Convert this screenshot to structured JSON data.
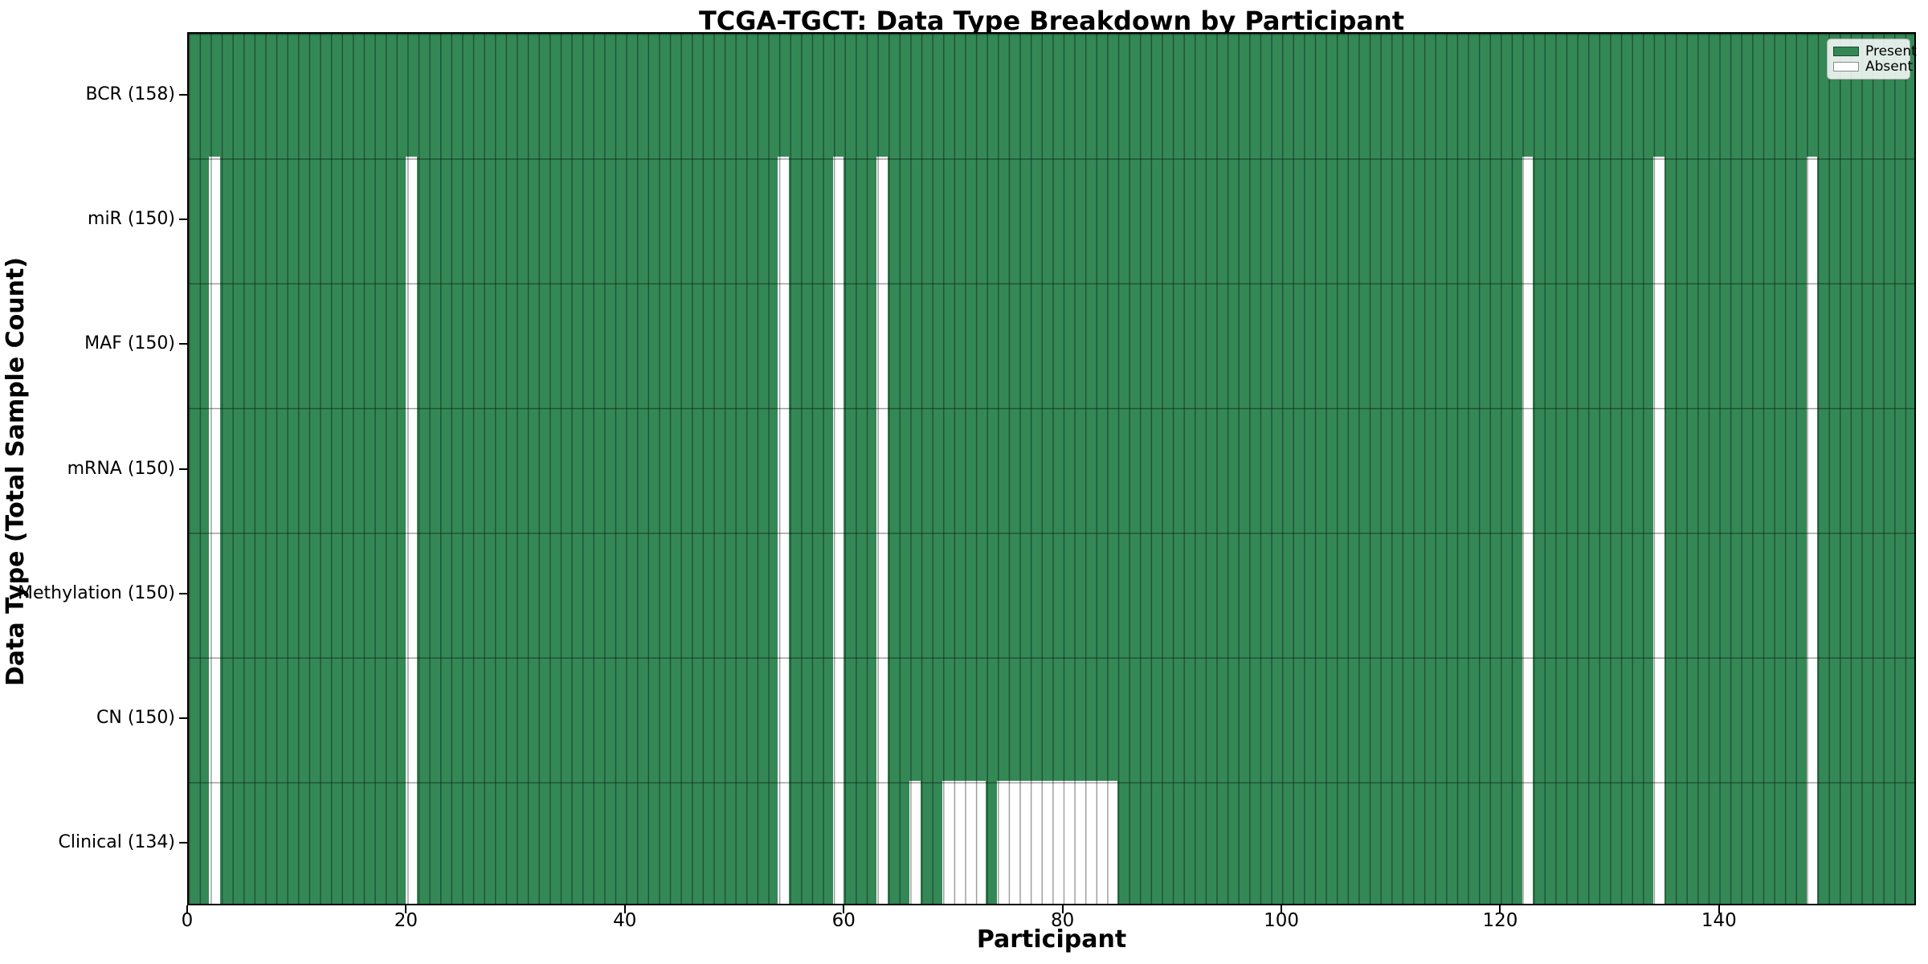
{
  "chart_data": {
    "type": "heatmap",
    "title": "TCGA-TGCT: Data Type Breakdown by Participant",
    "xlabel": "Participant",
    "ylabel": "Data Type (Total Sample Count)",
    "n_participants": 158,
    "n_rows": 7,
    "x_ticks": [
      0,
      20,
      40,
      60,
      80,
      100,
      120,
      140
    ],
    "rows": [
      {
        "label": "BCR (158)",
        "data_type": "BCR",
        "present_count": 158,
        "absent_participants": []
      },
      {
        "label": "miR (150)",
        "data_type": "miR",
        "present_count": 150,
        "absent_participants": [
          2,
          20,
          54,
          59,
          63,
          122,
          134,
          148
        ]
      },
      {
        "label": "MAF (150)",
        "data_type": "MAF",
        "present_count": 150,
        "absent_participants": [
          2,
          20,
          54,
          59,
          63,
          122,
          134,
          148
        ]
      },
      {
        "label": "mRNA (150)",
        "data_type": "mRNA",
        "present_count": 150,
        "absent_participants": [
          2,
          20,
          54,
          59,
          63,
          122,
          134,
          148
        ]
      },
      {
        "label": "Methylation (150)",
        "data_type": "Methylation",
        "present_count": 150,
        "absent_participants": [
          2,
          20,
          54,
          59,
          63,
          122,
          134,
          148
        ]
      },
      {
        "label": "CN (150)",
        "data_type": "CN",
        "present_count": 150,
        "absent_participants": [
          2,
          20,
          54,
          59,
          63,
          122,
          134,
          148
        ]
      },
      {
        "label": "Clinical (134)",
        "data_type": "Clinical",
        "present_count": 134,
        "absent_participants": [
          2,
          20,
          54,
          59,
          63,
          66,
          69,
          70,
          71,
          72,
          74,
          75,
          76,
          77,
          78,
          79,
          80,
          81,
          82,
          83,
          84,
          122,
          134,
          148
        ]
      }
    ],
    "legend": {
      "position": "upper right",
      "entries": [
        {
          "label": "Present",
          "color": "#348856"
        },
        {
          "label": "Absent",
          "color": "#ffffff"
        }
      ]
    },
    "colors": {
      "present": "#348856",
      "absent": "#ffffff",
      "bar_edge": "rgba(0,0,0,0.38)",
      "spine": "#000000"
    },
    "grid": false
  }
}
